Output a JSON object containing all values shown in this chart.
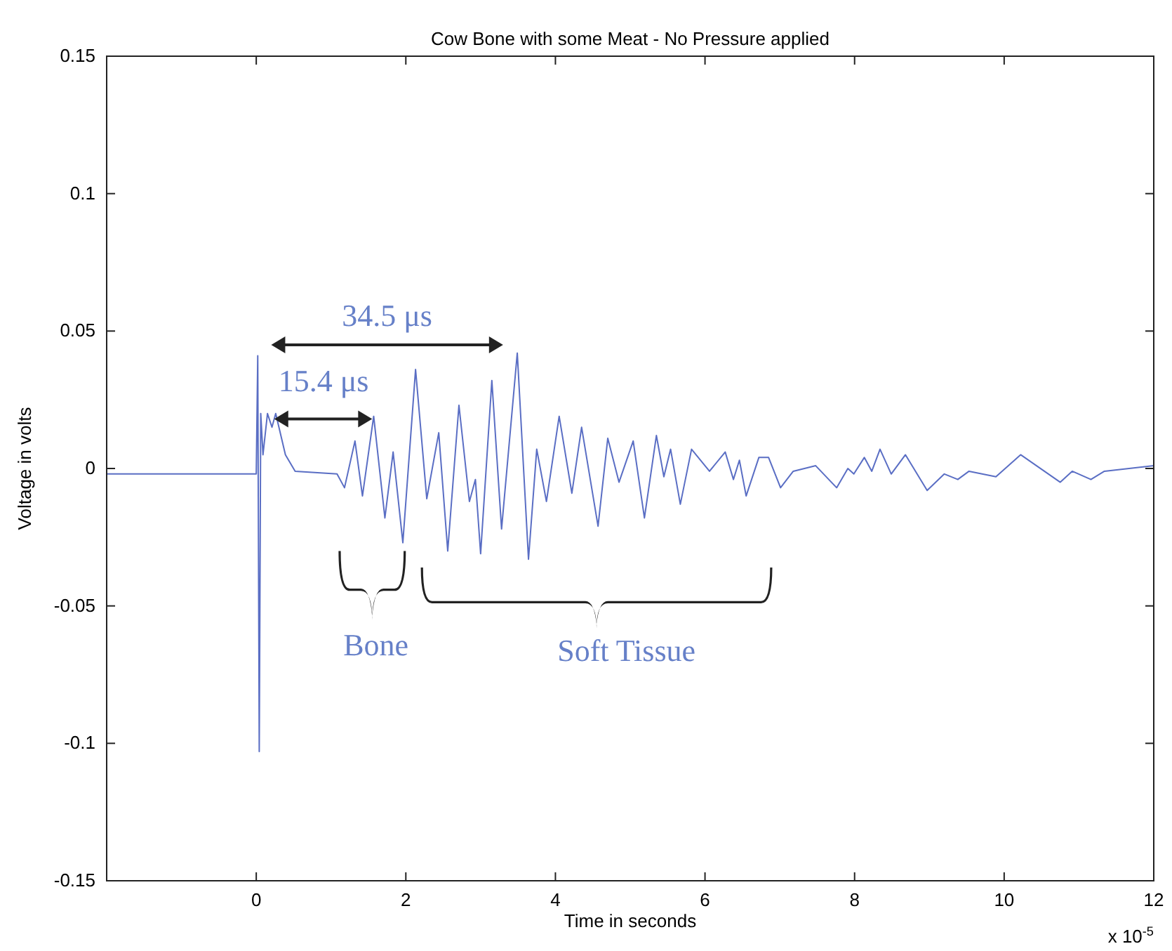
{
  "chart_data": {
    "type": "line",
    "title": "Cow Bone with some Meat - No Pressure applied",
    "xlabel": "Time in seconds",
    "ylabel": "Voltage in volts",
    "x": [
      -2,
      -0.04,
      0,
      0.02,
      0.04,
      0.06,
      0.09,
      0.15,
      0.21,
      0.26,
      0.39,
      0.52,
      1.08,
      1.18,
      1.32,
      1.42,
      1.57,
      1.72,
      1.83,
      1.96,
      2.13,
      2.28,
      2.44,
      2.56,
      2.71,
      2.85,
      2.93,
      3.0,
      3.15,
      3.28,
      3.49,
      3.64,
      3.75,
      3.88,
      4.05,
      4.22,
      4.35,
      4.57,
      4.7,
      4.85,
      5.04,
      5.19,
      5.35,
      5.45,
      5.54,
      5.67,
      5.82,
      6.06,
      6.27,
      6.38,
      6.46,
      6.55,
      6.72,
      6.85,
      7.01,
      7.18,
      7.48,
      7.76,
      7.91,
      7.99,
      8.13,
      8.23,
      8.34,
      8.49,
      8.68,
      8.97,
      9.2,
      9.38,
      9.53,
      9.89,
      10.22,
      10.75,
      10.91,
      11.16,
      11.34,
      12
    ],
    "series": [
      {
        "color": "#5a6ec4",
        "values": [
          -0.002,
          -0.002,
          -0.002,
          0.041,
          -0.103,
          0.02,
          0.005,
          0.02,
          0.015,
          0.02,
          0.005,
          -0.001,
          -0.002,
          -0.007,
          0.01,
          -0.01,
          0.019,
          -0.018,
          0.006,
          -0.027,
          0.036,
          -0.011,
          0.013,
          -0.03,
          0.023,
          -0.012,
          -0.004,
          -0.031,
          0.032,
          -0.022,
          0.042,
          -0.033,
          0.007,
          -0.012,
          0.019,
          -0.009,
          0.015,
          -0.021,
          0.011,
          -0.005,
          0.01,
          -0.018,
          0.012,
          -0.003,
          0.007,
          -0.013,
          0.007,
          -0.001,
          0.006,
          -0.004,
          0.003,
          -0.01,
          0.004,
          0.004,
          -0.007,
          -0.001,
          0.001,
          -0.007,
          0.0,
          -0.002,
          0.004,
          -0.001,
          0.007,
          -0.002,
          0.005,
          -0.008,
          -0.002,
          -0.004,
          -0.001,
          -0.003,
          0.005,
          -0.005,
          -0.001,
          -0.004,
          -0.001,
          0.001
        ]
      }
    ],
    "xlim": [
      -2,
      12
    ],
    "xticks": [
      0,
      2,
      4,
      6,
      8,
      10,
      12
    ],
    "ylim": [
      -0.15,
      0.15
    ],
    "yticks": [
      -0.15,
      -0.1,
      -0.05,
      0,
      0.05,
      0.1,
      0.15
    ],
    "grid": false,
    "marker": "none",
    "line_style": "solid",
    "annotations": [
      "34.5 μs",
      "15.4 μs",
      "Bone",
      "Soft Tissue",
      "x 10$^{-5}$"
    ]
  }
}
